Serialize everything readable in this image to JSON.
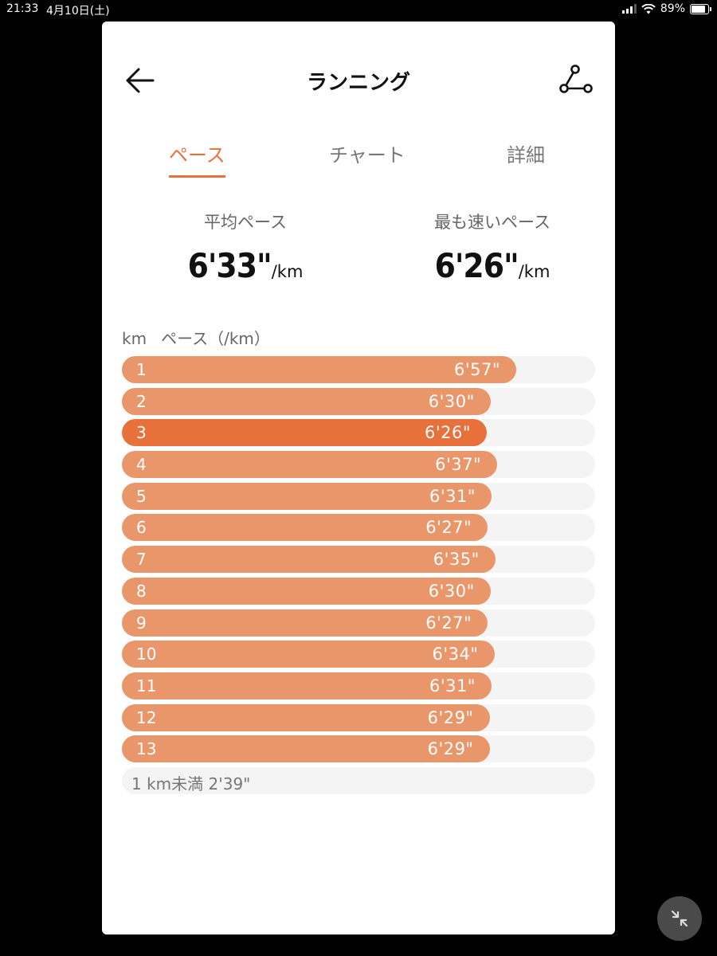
{
  "status_bar": {
    "time": "21:33",
    "date": "4月10日(土)",
    "battery": "89%"
  },
  "header": {
    "title": "ランニング",
    "back_icon": "arrow-left-icon",
    "route_icon": "route-icon"
  },
  "tabs": [
    {
      "label": "ペース",
      "active": true
    },
    {
      "label": "チャート",
      "active": false
    },
    {
      "label": "詳細",
      "active": false
    }
  ],
  "stats": {
    "average": {
      "label": "平均ペース",
      "value": "6'33\"",
      "unit": "/km"
    },
    "fastest": {
      "label": "最も速いペース",
      "value": "6'26\"",
      "unit": "/km"
    }
  },
  "list_header": {
    "km": "km",
    "pace": "ペース（/km）"
  },
  "splits": [
    {
      "km": "1",
      "pace": "6'57\"",
      "seconds": 417
    },
    {
      "km": "2",
      "pace": "6'30\"",
      "seconds": 390
    },
    {
      "km": "3",
      "pace": "6'26\"",
      "seconds": 386,
      "fastest": true
    },
    {
      "km": "4",
      "pace": "6'37\"",
      "seconds": 397
    },
    {
      "km": "5",
      "pace": "6'31\"",
      "seconds": 391
    },
    {
      "km": "6",
      "pace": "6'27\"",
      "seconds": 387
    },
    {
      "km": "7",
      "pace": "6'35\"",
      "seconds": 395
    },
    {
      "km": "8",
      "pace": "6'30\"",
      "seconds": 390
    },
    {
      "km": "9",
      "pace": "6'27\"",
      "seconds": 387
    },
    {
      "km": "10",
      "pace": "6'34\"",
      "seconds": 394
    },
    {
      "km": "11",
      "pace": "6'31\"",
      "seconds": 391
    },
    {
      "km": "12",
      "pace": "6'29\"",
      "seconds": 389
    },
    {
      "km": "13",
      "pace": "6'29\"",
      "seconds": 389
    }
  ],
  "partial": {
    "label": "1 km未満 2'39\""
  },
  "colors": {
    "accent": "#e8703a",
    "bar": "#ea966b",
    "track": "#f4f4f4"
  },
  "fab_icon": "collapse-arrows-icon"
}
